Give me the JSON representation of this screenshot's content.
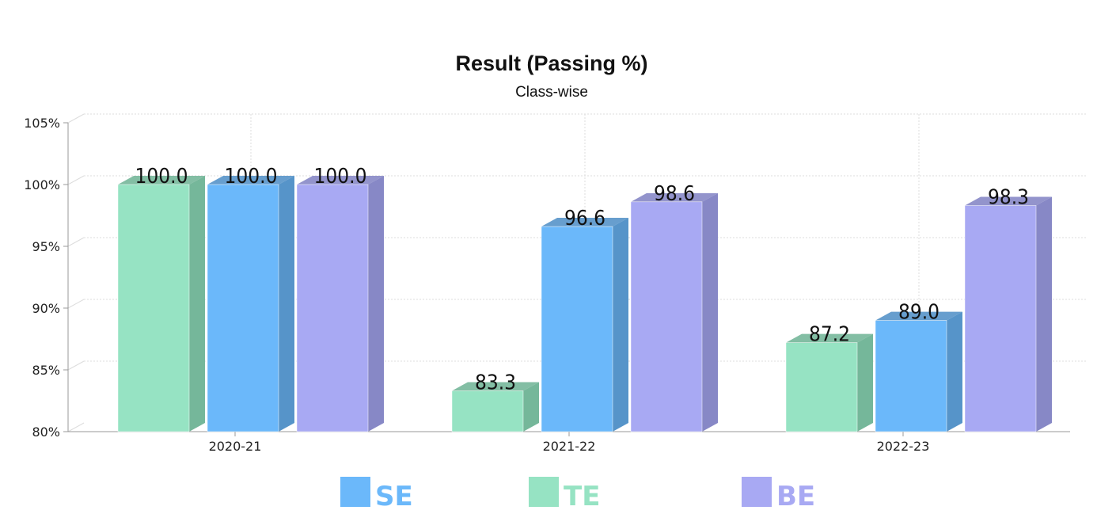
{
  "chart_data": {
    "type": "bar",
    "title": "Result (Passing %)",
    "subtitle": "Class-wise",
    "categories": [
      "2020-21",
      "2021-22",
      "2022-23"
    ],
    "series": [
      {
        "name": "TE",
        "values": [
          100.0,
          83.3,
          87.2
        ],
        "labels": [
          "100.0",
          "83.3",
          "87.2"
        ],
        "color": "#96e3c3",
        "side_color": "#75b79a"
      },
      {
        "name": "SE",
        "values": [
          100.0,
          96.6,
          89.0
        ],
        "labels": [
          "100.0",
          "96.6",
          "89.0"
        ],
        "color": "#6bb8fa",
        "side_color": "#5694c9"
      },
      {
        "name": "BE",
        "values": [
          100.0,
          98.6,
          98.3
        ],
        "labels": [
          "100.0",
          "98.6",
          "98.3"
        ],
        "color": "#a8a9f3",
        "side_color": "#8788c6"
      }
    ],
    "ylim": [
      80,
      105
    ],
    "yticks": [
      "80%",
      "85%",
      "90%",
      "95%",
      "100%",
      "105%"
    ],
    "ytick_values": [
      80,
      85,
      90,
      95,
      100,
      105
    ],
    "grid": true,
    "legend_position": "bottom",
    "legend": [
      {
        "name": "SE",
        "color": "#6bb8fa"
      },
      {
        "name": "TE",
        "color": "#96e3c3"
      },
      {
        "name": "BE",
        "color": "#a8a9f3"
      }
    ]
  }
}
